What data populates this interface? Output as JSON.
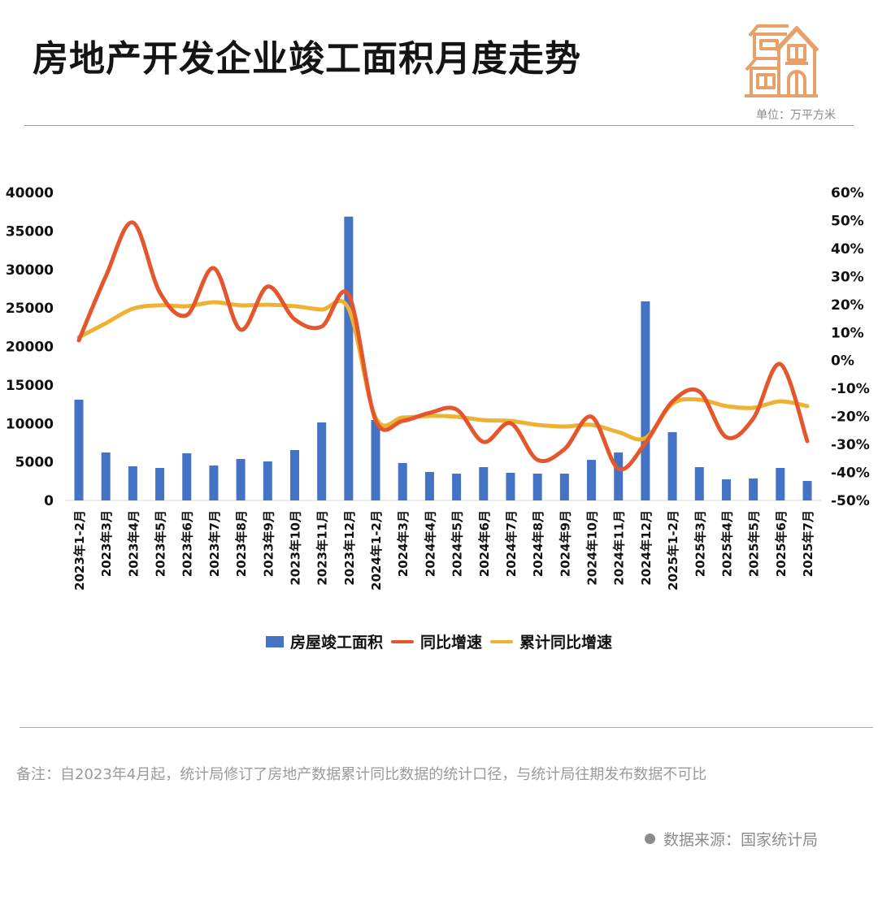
{
  "header": {
    "title": "房地产开发企业竣工面积月度走势",
    "icon": "house-icon",
    "unit": "单位：万平方米"
  },
  "colors": {
    "bar": "#4472C4",
    "yoy": "#E4572E",
    "cum_yoy": "#EDB233",
    "icon": "#E8A06A"
  },
  "legend": {
    "bar_label": "房屋竣工面积",
    "yoy_label": "同比增速",
    "cum_label": "累计同比增速"
  },
  "footer": {
    "note": "备注：自2023年4月起，统计局修订了房地产数据累计同比数据的统计口径，与统计局往期发布数据不可比",
    "source": "数据来源：国家统计局"
  },
  "chart_data": {
    "type": "bar+line",
    "title": "房地产开发企业竣工面积月度走势",
    "unit": "万平方米",
    "categories": [
      "2023年1-2月",
      "2023年3月",
      "2023年4月",
      "2023年5月",
      "2023年6月",
      "2023年7月",
      "2023年8月",
      "2023年9月",
      "2023年10月",
      "2023年11月",
      "2023年12月",
      "2024年1-2月",
      "2024年3月",
      "2024年4月",
      "2024年5月",
      "2024年6月",
      "2024年7月",
      "2024年8月",
      "2024年9月",
      "2024年10月",
      "2024年11月",
      "2024年12月",
      "2025年1-2月",
      "2025年3月",
      "2025年4月",
      "2025年5月",
      "2025年6月",
      "2025年7月"
    ],
    "series": [
      {
        "name": "房屋竣工面积",
        "type": "bar",
        "axis": "left",
        "values": [
          13090,
          6230,
          4430,
          4220,
          6120,
          4540,
          5380,
          5070,
          6540,
          10130,
          36870,
          10450,
          4860,
          3690,
          3480,
          4330,
          3590,
          3480,
          3480,
          5270,
          6230,
          25860,
          8870,
          4330,
          2740,
          2850,
          4220,
          2530
        ]
      },
      {
        "name": "同比增速",
        "type": "line",
        "axis": "right",
        "unit": "%",
        "values": [
          7.2,
          30.1,
          49.3,
          24.3,
          16.2,
          33.0,
          11.0,
          26.4,
          14.7,
          12.1,
          23.5,
          -21.3,
          -21.6,
          -18.7,
          -17.5,
          -29.1,
          -22.4,
          -35.5,
          -31.7,
          -20.1,
          -38.7,
          -29.5,
          -14.7,
          -11.1,
          -27.4,
          -20.7,
          -1.3,
          -28.8
        ]
      },
      {
        "name": "累计同比增速",
        "type": "line",
        "axis": "right",
        "unit": "%",
        "values": [
          8.3,
          13.3,
          18.5,
          19.7,
          19.4,
          20.8,
          19.7,
          19.9,
          19.4,
          18.2,
          18.5,
          -20.4,
          -20.4,
          -19.8,
          -20.1,
          -21.3,
          -21.6,
          -23.0,
          -23.6,
          -23.0,
          -25.6,
          -27.7,
          -15.5,
          -14.0,
          -16.3,
          -16.9,
          -14.6,
          -16.3
        ]
      }
    ],
    "left_axis": {
      "ylim": [
        0,
        40000
      ],
      "ticks": [
        "0",
        "5000",
        "10000",
        "15000",
        "20000",
        "25000",
        "30000",
        "35000",
        "40000"
      ]
    },
    "right_axis": {
      "ylim": [
        -50,
        60
      ],
      "ticks": [
        "-50%",
        "-40%",
        "-30%",
        "-20%",
        "-10%",
        "0%",
        "10%",
        "20%",
        "30%",
        "40%",
        "50%",
        "60%"
      ]
    },
    "grid": false,
    "legend_position": "bottom"
  }
}
